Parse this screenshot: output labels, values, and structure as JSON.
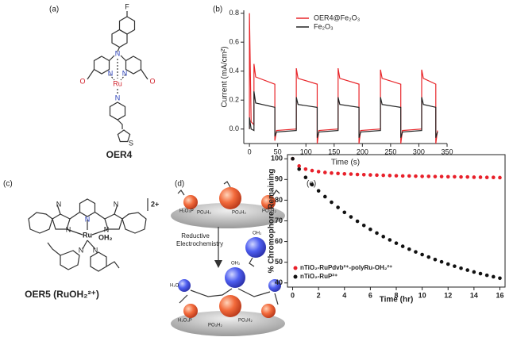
{
  "panel_a": {
    "label": "(a)",
    "atoms": [
      "F",
      "N",
      "N",
      "N",
      "O",
      "O",
      "Ru",
      "N",
      "S"
    ],
    "name": "OER4"
  },
  "panel_c": {
    "label": "(c)",
    "charge": "2+",
    "atoms": [
      "N",
      "N",
      "N",
      "N",
      "N",
      "Ru",
      "OH₂",
      "N",
      "N"
    ],
    "name": "OER5 (RuOH₂²⁺)"
  },
  "panel_d": {
    "label": "(d)",
    "process": "Reductive Electrochemistry",
    "top_labels": [
      "H₂O₃P",
      "PO₃H₂",
      "PO₃H₂",
      "PO₃H₂"
    ],
    "monomer_label": "OH₂",
    "bottom_labels": [
      "H₂O",
      "OH₂",
      "H₂O₃P",
      "PO₃H₂",
      "PO₃H₂"
    ]
  },
  "chart_data": [
    {
      "type": "line",
      "label": "(b)",
      "x_label": "Time (s)",
      "y_label": "Current (mA/cm²)",
      "x": [
        0,
        0,
        3,
        8,
        8,
        11,
        45,
        45,
        48,
        83,
        83,
        86,
        120,
        120,
        123,
        157,
        157,
        160,
        194,
        194,
        197,
        232,
        232,
        235,
        268,
        268,
        271,
        305,
        305,
        308,
        330,
        330,
        333
      ],
      "series": [
        {
          "name": "OER4@Fe₂O₃",
          "color": "#e8262a",
          "values": [
            0,
            0.8,
            0.05,
            0.03,
            0.45,
            0.36,
            0.31,
            -0.08,
            -0.01,
            0.0,
            0.42,
            0.35,
            0.31,
            -0.1,
            -0.01,
            0.0,
            0.42,
            0.35,
            0.31,
            -0.1,
            -0.01,
            0.0,
            0.41,
            0.35,
            0.31,
            -0.1,
            -0.01,
            0.0,
            0.41,
            0.35,
            0.31,
            -0.1,
            -0.01
          ]
        },
        {
          "name": "Fe₂O₃",
          "color": "#222222",
          "values": [
            0,
            0.08,
            0.0,
            -0.01,
            0.26,
            0.18,
            0.15,
            -0.05,
            -0.02,
            -0.01,
            0.22,
            0.17,
            0.15,
            -0.06,
            -0.02,
            -0.01,
            0.22,
            0.17,
            0.15,
            -0.06,
            -0.02,
            -0.01,
            0.22,
            0.17,
            0.15,
            -0.06,
            -0.02,
            -0.01,
            0.22,
            0.17,
            0.15,
            -0.06,
            -0.02
          ]
        }
      ],
      "xlim": [
        -10,
        350
      ],
      "xticks": [
        0,
        50,
        100,
        150,
        200,
        250,
        300,
        350
      ],
      "ylim": [
        -0.1,
        0.82
      ],
      "yticks": [
        {
          "value": 0,
          "label": "0.0"
        },
        0.2,
        0.4,
        0.6,
        0.8
      ],
      "legend": "upper right"
    },
    {
      "type": "scatter",
      "label": "(e)",
      "x_label": "Time (hr)",
      "y_label": "% Chromophore Remaining",
      "x": [
        0,
        0.5,
        1,
        1.5,
        2,
        2.5,
        3,
        3.5,
        4,
        4.5,
        5,
        5.5,
        6,
        6.5,
        7,
        7.5,
        8,
        8.5,
        9,
        9.5,
        10,
        10.5,
        11,
        11.5,
        12,
        12.5,
        13,
        13.5,
        14,
        14.5,
        15,
        15.5,
        16
      ],
      "series": [
        {
          "name": "nTiO₂-RuPdvb²⁺-polyRu-OH₂²⁺",
          "color": "#e8202a",
          "values": [
            100,
            96.5,
            95,
            94.3,
            93.8,
            93.4,
            93.1,
            92.9,
            92.7,
            92.6,
            92.4,
            92.3,
            92.2,
            92.1,
            92,
            91.9,
            91.8,
            91.7,
            91.7,
            91.6,
            91.5,
            91.5,
            91.4,
            91.4,
            91.3,
            91.3,
            91.2,
            91.2,
            91.1,
            91.1,
            91,
            91,
            90.9
          ]
        },
        {
          "name": "nTiO₂-RuP²⁺",
          "color": "#111111",
          "values": [
            100,
            95,
            91,
            87.5,
            84.5,
            81.7,
            79,
            76.5,
            74.1,
            71.9,
            69.8,
            67.8,
            65.9,
            64.1,
            62.4,
            60.8,
            59.2,
            57.7,
            56.3,
            55,
            53.7,
            52.5,
            51.3,
            50.2,
            49.1,
            48.1,
            47.1,
            46.2,
            45.3,
            44.5,
            43.7,
            43,
            42.3
          ]
        }
      ],
      "xlim": [
        -0.4,
        16.4
      ],
      "xticks": [
        0,
        2,
        4,
        6,
        8,
        10,
        12,
        14,
        16
      ],
      "ylim": [
        38,
        102
      ],
      "yticks": [
        40,
        50,
        60,
        70,
        80,
        90,
        100
      ],
      "legend": "lower left"
    }
  ]
}
